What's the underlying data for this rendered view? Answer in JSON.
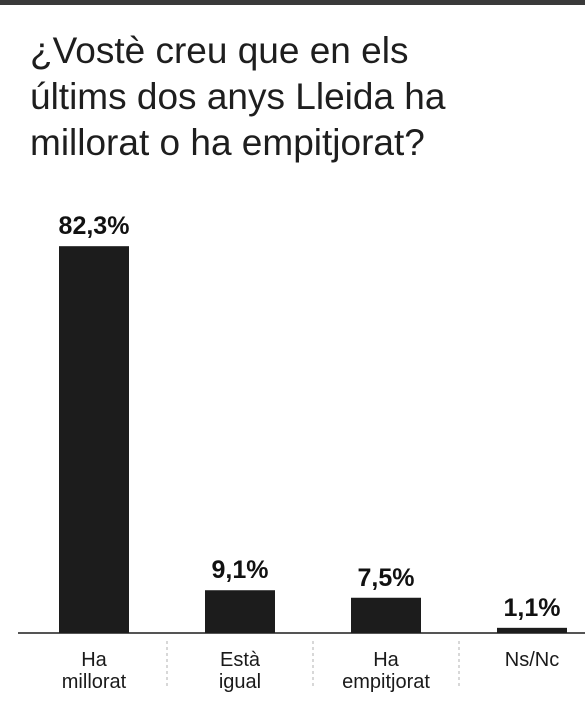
{
  "chart_data": {
    "type": "bar",
    "title_lines": [
      "¿Vostè creu que en els",
      "últims dos anys Lleida ha",
      "millorat o ha empitjorat?"
    ],
    "categories": [
      [
        "Ha",
        "millorat"
      ],
      [
        "Està",
        "igual"
      ],
      [
        "Ha",
        "empitjorat"
      ],
      [
        "Ns/Nc"
      ]
    ],
    "values": [
      82.3,
      9.1,
      7.5,
      1.1
    ],
    "value_labels": [
      "82,3%",
      "9,1%",
      "7,5%",
      "1,1%"
    ],
    "ylim": [
      0,
      100
    ],
    "xlabel": "",
    "ylabel": "",
    "grid": false,
    "legend": "none",
    "colors": {
      "bar": "#1c1c1c",
      "baseline": "#555555",
      "separator": "#b0b0b0",
      "top_rule": "#3a3a3a"
    }
  }
}
